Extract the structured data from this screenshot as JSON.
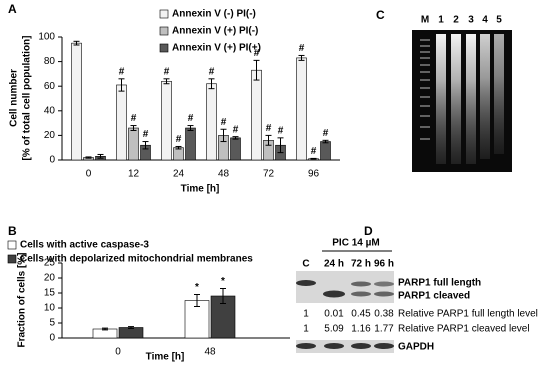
{
  "chart_data": [
    {
      "type": "bar",
      "panel_label": "A",
      "ylabel": [
        "Cell number",
        "[% of total cell population]"
      ],
      "xlabel": "Time [h]",
      "categories": [
        "0",
        "12",
        "24",
        "48",
        "72",
        "96"
      ],
      "series": [
        {
          "name": "Annexin V (-) PI(-)",
          "color": "#f2f2f2",
          "values": [
            95,
            61,
            64,
            62,
            73,
            83
          ],
          "errors": [
            1.5,
            5,
            2,
            4,
            8,
            2
          ],
          "annotations": [
            null,
            "#",
            "#",
            "#",
            "#",
            "#"
          ]
        },
        {
          "name": "Annexin V (+) PI(-)",
          "color": "#bfbfbf",
          "values": [
            2,
            26,
            10,
            20,
            16,
            1
          ],
          "errors": [
            0.5,
            2,
            1,
            5,
            4,
            0.3
          ],
          "annotations": [
            null,
            "#",
            "#",
            "#",
            "#",
            "#"
          ]
        },
        {
          "name": "Annexin V (+) PI(+)",
          "color": "#595959",
          "values": [
            3,
            12,
            26,
            18,
            12,
            15
          ],
          "errors": [
            1.5,
            3,
            2,
            1,
            6,
            1
          ],
          "annotations": [
            null,
            "#",
            "#",
            "#",
            "#",
            "#"
          ]
        }
      ],
      "ylim": [
        0,
        100
      ],
      "yticks": [
        0,
        20,
        40,
        60,
        80,
        100
      ],
      "legend": "top"
    },
    {
      "type": "bar",
      "panel_label": "B",
      "ylabel": [
        "Fraction of cells [%]"
      ],
      "xlabel": "Time [h]",
      "categories": [
        "0",
        "48"
      ],
      "series": [
        {
          "name": "Cells with active caspase-3",
          "color": "#ffffff",
          "values": [
            3,
            12.5
          ],
          "errors": [
            0.3,
            2
          ],
          "annotations": [
            null,
            "*"
          ]
        },
        {
          "name": "Cells with depolarized mitochondrial membranes",
          "color": "#404040",
          "values": [
            3.5,
            14
          ],
          "errors": [
            0.3,
            2.5
          ],
          "annotations": [
            null,
            "*"
          ]
        }
      ],
      "ylim": [
        0,
        25
      ],
      "yticks": [
        0,
        5,
        10,
        15,
        20,
        25
      ],
      "legend": "top-left"
    }
  ],
  "gel": {
    "panel_label": "C",
    "lanes": [
      "M",
      "1",
      "2",
      "3",
      "4",
      "5"
    ]
  },
  "blot": {
    "panel_label": "D",
    "treatment": "PIC 14 µM",
    "lanes": [
      "C",
      "24 h",
      "72 h",
      "96 h"
    ],
    "band_labels": [
      "PARP1 full length",
      "PARP1 cleaved"
    ],
    "rows": [
      {
        "values": [
          1,
          0.01,
          0.45,
          0.38
        ],
        "label": "Relative PARP1 full length level"
      },
      {
        "values": [
          1,
          5.09,
          1.16,
          1.77
        ],
        "label": "Relative PARP1 cleaved level"
      }
    ],
    "loading_control": "GAPDH"
  }
}
